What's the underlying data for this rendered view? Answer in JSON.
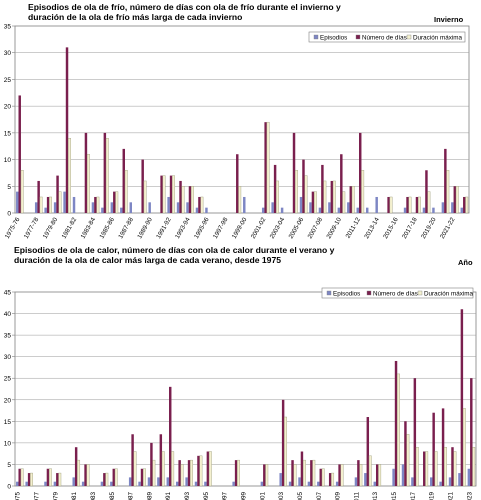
{
  "chart_data": [
    {
      "type": "bar",
      "title_lines": [
        "Episodios de ola de frío, número de días con ola de frío durante el invierno y",
        "duración de la ola de frío más larga de cada invierno"
      ],
      "corner_label": "Invierno",
      "ylim": [
        0,
        35
      ],
      "yticks": [
        0,
        5,
        10,
        15,
        20,
        25,
        30,
        35
      ],
      "grid": true,
      "legend_position": "top-right",
      "categories": [
        "1975-76",
        "1976-77",
        "1977-78",
        "1978-79",
        "1979-80",
        "1980-81",
        "1981-82",
        "1982-83",
        "1983-84",
        "1984-85",
        "1985-86",
        "1986-87",
        "1987-88",
        "1988-89",
        "1989-90",
        "1990-91",
        "1991-92",
        "1992-93",
        "1993-94",
        "1994-95",
        "1995-96",
        "1996-97",
        "1997-98",
        "1998-99",
        "1999-00",
        "2000-01",
        "2001-02",
        "2002-03",
        "2003-04",
        "2004-05",
        "2005-06",
        "2006-07",
        "2007-08",
        "2008-09",
        "2009-10",
        "2010-11",
        "2011-12",
        "2012-13",
        "2013-14",
        "2014-15",
        "2015-16",
        "2016-17",
        "2017-18",
        "2018-19",
        "2019-20",
        "2020-21",
        "2021-22",
        "2022-23"
      ],
      "tick_labels": [
        "1975-76",
        "",
        "1977-78",
        "",
        "1979-80",
        "",
        "1981-82",
        "",
        "1983-84",
        "",
        "1985-86",
        "",
        "1987-88",
        "",
        "1989-90",
        "",
        "1991-92",
        "",
        "1993-94",
        "",
        "1995-96",
        "",
        "1997-98",
        "",
        "1999-00",
        "",
        "2001-02",
        "",
        "2003-04",
        "",
        "2005-06",
        "",
        "2007-08",
        "",
        "2009-10",
        "",
        "2011-12",
        "",
        "2013-14",
        "",
        "2015-16",
        "",
        "2017-18",
        "",
        "2019-20",
        "",
        "2021-22",
        ""
      ],
      "series": [
        {
          "name": "Episodios",
          "values": [
            4,
            0,
            2,
            1,
            2,
            4,
            3,
            0,
            2,
            1,
            2,
            1,
            2,
            0,
            2,
            0,
            3,
            2,
            2,
            1,
            1,
            0,
            0,
            0,
            3,
            0,
            1,
            2,
            1,
            0,
            3,
            2,
            1,
            2,
            1,
            2,
            1,
            1,
            3,
            0,
            0,
            1,
            0,
            1,
            1,
            2,
            2,
            1
          ]
        },
        {
          "name": "Número de días",
          "values": [
            22,
            0,
            6,
            3,
            7,
            31,
            0,
            15,
            3,
            15,
            4,
            12,
            0,
            10,
            0,
            7,
            7,
            6,
            5,
            3,
            0,
            0,
            0,
            11,
            0,
            0,
            17,
            9,
            0,
            15,
            10,
            4,
            9,
            6,
            11,
            5,
            15,
            0,
            0,
            3,
            0,
            3,
            3,
            8,
            0,
            12,
            5,
            3
          ]
        },
        {
          "name": "Duración máxima",
          "values": [
            8,
            0,
            3,
            3,
            4,
            14,
            0,
            11,
            3,
            14,
            4,
            8,
            0,
            6,
            0,
            7,
            7,
            5,
            5,
            3,
            0,
            0,
            0,
            5,
            0,
            0,
            17,
            6,
            0,
            8,
            7,
            4,
            6,
            6,
            4,
            5,
            8,
            0,
            0,
            3,
            0,
            3,
            3,
            4,
            0,
            8,
            5,
            3
          ]
        }
      ],
      "colors": [
        "#7d86c4",
        "#7a1f4e",
        "#f4f0cf"
      ]
    },
    {
      "type": "bar",
      "title_lines": [
        "Episodios de ola de calor, número de días con ola de calor durante el verano y",
        "duración de la ola de calor más larga de cada verano, desde 1975"
      ],
      "corner_label": "Año",
      "ylim": [
        0,
        45
      ],
      "yticks": [
        0,
        5,
        10,
        15,
        20,
        25,
        30,
        35,
        40,
        45
      ],
      "grid": true,
      "legend_position": "top-right",
      "categories": [
        "1975",
        "1976",
        "1977",
        "1978",
        "1979",
        "1980",
        "1981",
        "1982",
        "1983",
        "1984",
        "1985",
        "1986",
        "1987",
        "1988",
        "1989",
        "1990",
        "1991",
        "1992",
        "1993",
        "1994",
        "1995",
        "1996",
        "1997",
        "1998",
        "1999",
        "2000",
        "2001",
        "2002",
        "2003",
        "2004",
        "2005",
        "2006",
        "2007",
        "2008",
        "2009",
        "2010",
        "2011",
        "2012",
        "2013",
        "2014",
        "2015",
        "2016",
        "2017",
        "2018",
        "2019",
        "2020",
        "2021",
        "2022",
        "2023"
      ],
      "tick_labels": [
        "1975",
        "",
        "1977",
        "",
        "1979",
        "",
        "1981",
        "",
        "1983",
        "",
        "1985",
        "",
        "1987",
        "",
        "1989",
        "",
        "1991",
        "",
        "1993",
        "",
        "1995",
        "",
        "1997",
        "",
        "1999",
        "",
        "2001",
        "",
        "2003",
        "",
        "2005",
        "",
        "2007",
        "",
        "2009",
        "",
        "2011",
        "",
        "2013",
        "",
        "2015",
        "",
        "2017",
        "",
        "2019",
        "",
        "2021",
        "",
        "2023"
      ],
      "series": [
        {
          "name": "Episodios",
          "values": [
            1,
            1,
            0,
            1,
            1,
            0,
            2,
            1,
            0,
            1,
            1,
            0,
            2,
            1,
            2,
            2,
            2,
            1,
            2,
            1,
            1,
            0,
            0,
            1,
            0,
            0,
            1,
            0,
            3,
            1,
            2,
            1,
            1,
            0,
            1,
            0,
            2,
            3,
            1,
            0,
            4,
            5,
            2,
            0,
            2,
            1,
            2,
            3,
            4
          ]
        },
        {
          "name": "Número de días",
          "values": [
            4,
            3,
            0,
            4,
            3,
            0,
            9,
            5,
            0,
            3,
            4,
            0,
            12,
            4,
            10,
            12,
            23,
            6,
            6,
            7,
            8,
            0,
            0,
            6,
            0,
            0,
            5,
            0,
            20,
            6,
            8,
            6,
            4,
            3,
            5,
            0,
            6,
            16,
            5,
            0,
            29,
            15,
            25,
            8,
            17,
            18,
            9,
            41,
            25
          ]
        },
        {
          "name": "Duración máxima",
          "values": [
            4,
            3,
            0,
            4,
            3,
            0,
            6,
            5,
            0,
            3,
            4,
            0,
            8,
            4,
            6,
            8,
            8,
            5,
            6,
            7,
            8,
            0,
            0,
            6,
            0,
            0,
            5,
            0,
            16,
            5,
            6,
            6,
            4,
            3,
            5,
            0,
            5,
            7,
            5,
            0,
            26,
            12,
            9,
            8,
            8,
            9,
            8,
            18,
            9
          ]
        }
      ],
      "colors": [
        "#7d86c4",
        "#7a1f4e",
        "#f4f0cf"
      ]
    }
  ]
}
